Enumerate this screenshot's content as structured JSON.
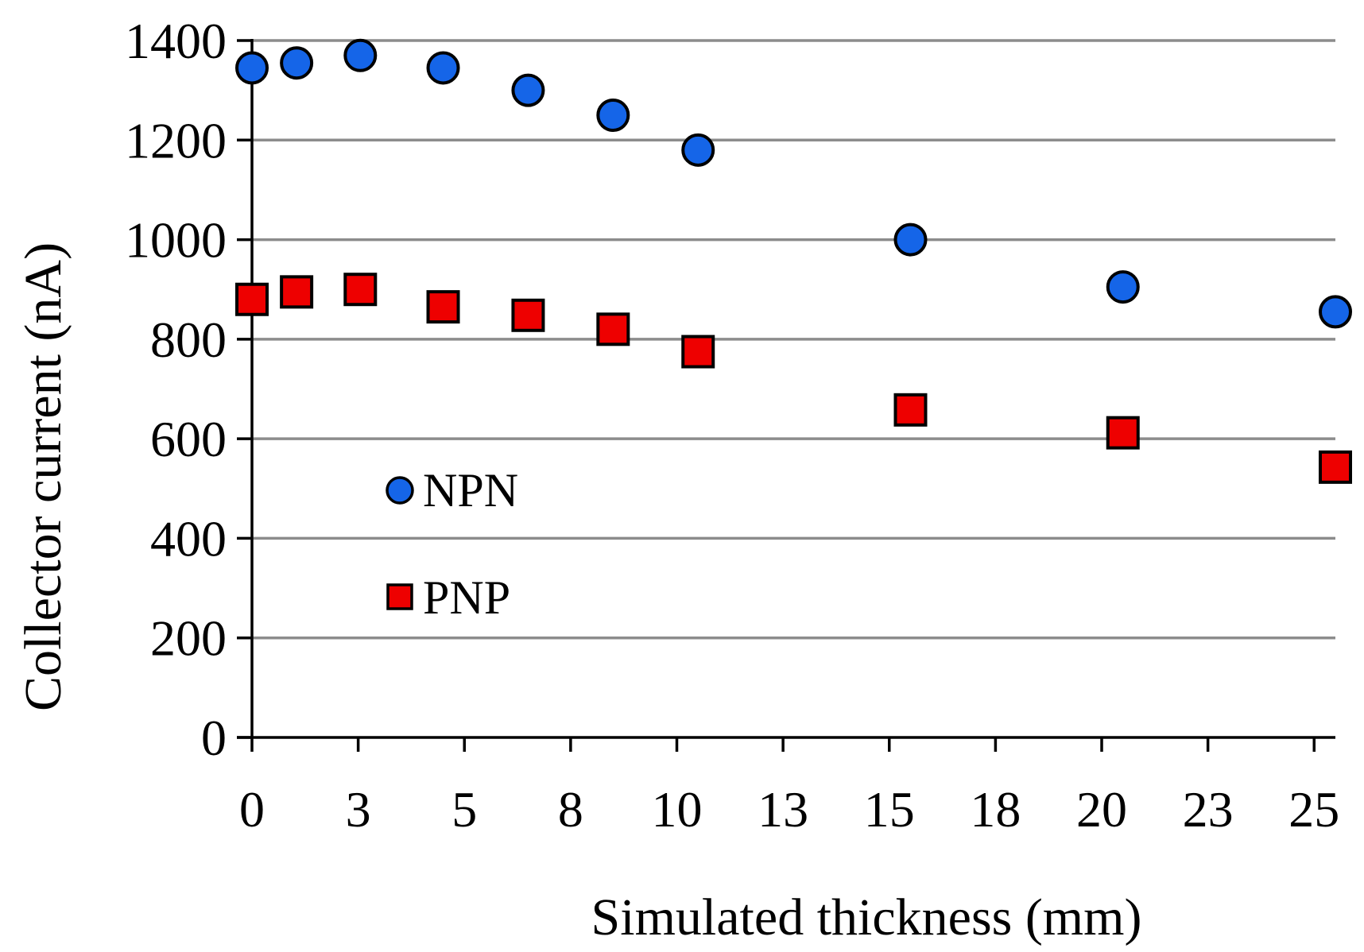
{
  "chart_data": {
    "type": "scatter",
    "title": "",
    "xlabel": "Simulated thickness (mm)",
    "ylabel": "Collector current (nA)",
    "xlim": [
      0,
      25.5
    ],
    "ylim": [
      0,
      1400
    ],
    "grid": "horizontal",
    "legend_position": "center-left",
    "x_tick_labels": [
      "0",
      "3",
      "5",
      "8",
      "10",
      "13",
      "15",
      "18",
      "20",
      "23",
      "25"
    ],
    "y_tick_labels": [
      "0",
      "200",
      "400",
      "600",
      "800",
      "1000",
      "1200",
      "1400"
    ],
    "series": [
      {
        "name": "NPN",
        "marker": "circle",
        "color": "#1565e8",
        "points": [
          {
            "x": 0,
            "y": 1345
          },
          {
            "x": 1.05,
            "y": 1355
          },
          {
            "x": 2.55,
            "y": 1370
          },
          {
            "x": 4.5,
            "y": 1345
          },
          {
            "x": 6.5,
            "y": 1300
          },
          {
            "x": 8.5,
            "y": 1250
          },
          {
            "x": 10.5,
            "y": 1180
          },
          {
            "x": 15.5,
            "y": 1000
          },
          {
            "x": 20.5,
            "y": 905
          },
          {
            "x": 25.5,
            "y": 855
          }
        ]
      },
      {
        "name": "PNP",
        "marker": "square",
        "color": "#ee0000",
        "points": [
          {
            "x": 0,
            "y": 880
          },
          {
            "x": 1.05,
            "y": 895
          },
          {
            "x": 2.55,
            "y": 900
          },
          {
            "x": 4.5,
            "y": 865
          },
          {
            "x": 6.5,
            "y": 848
          },
          {
            "x": 8.5,
            "y": 820
          },
          {
            "x": 10.5,
            "y": 775
          },
          {
            "x": 15.5,
            "y": 658
          },
          {
            "x": 20.5,
            "y": 612
          },
          {
            "x": 25.5,
            "y": 543
          }
        ]
      }
    ]
  },
  "colors": {
    "grid": "#8c8c8c",
    "axis": "#000000",
    "marker_stroke": "#000000"
  }
}
